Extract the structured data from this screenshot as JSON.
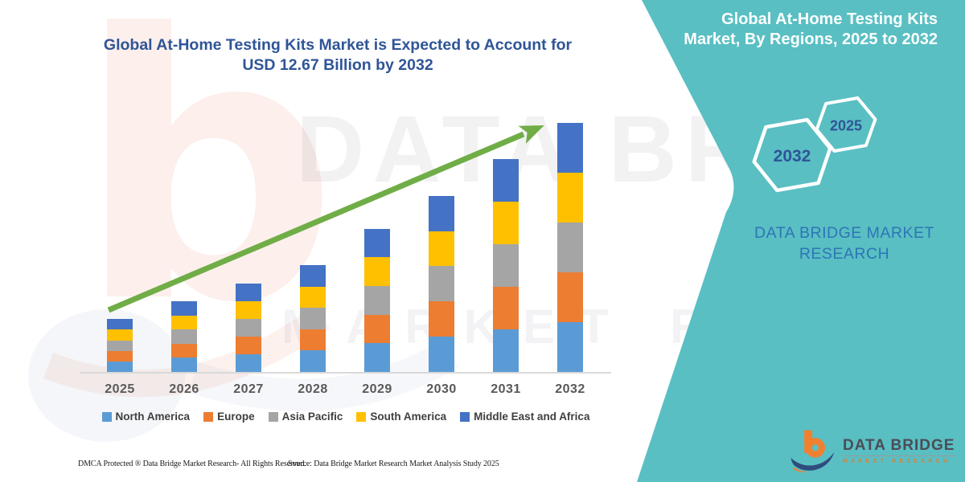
{
  "header": {
    "title_line1": "Global At-Home Testing Kits Market is Expected to Account for",
    "title_line2": "USD 12.67 Billion by 2032"
  },
  "panel": {
    "title_line1": "Global At-Home Testing Kits",
    "title_line2": "Market, By Regions, 2025 to 2032",
    "hexagons": [
      {
        "label": "2032"
      },
      {
        "label": "2025"
      }
    ],
    "brand_line1": "DATA BRIDGE MARKET",
    "brand_line2": "RESEARCH",
    "background_color": "#59BFC3"
  },
  "chart_data": {
    "type": "bar",
    "stacked": true,
    "title": "Global At-Home Testing Kits Market, By Regions, 2025 to 2032",
    "unit": "USD Billion",
    "highlight_value": "USD 12.67 Billion by 2032",
    "categories": [
      "2025",
      "2026",
      "2027",
      "2028",
      "2029",
      "2030",
      "2031",
      "2032"
    ],
    "series": [
      {
        "name": "North America",
        "color": "#5B9BD5",
        "values": [
          0.538,
          0.718,
          0.896,
          1.084,
          1.458,
          1.792,
          2.168,
          2.534
        ]
      },
      {
        "name": "Europe",
        "color": "#ED7D31",
        "values": [
          0.538,
          0.718,
          0.896,
          1.084,
          1.458,
          1.792,
          2.168,
          2.534
        ]
      },
      {
        "name": "Asia Pacific",
        "color": "#A5A5A5",
        "values": [
          0.538,
          0.718,
          0.896,
          1.084,
          1.458,
          1.792,
          2.168,
          2.534
        ]
      },
      {
        "name": "South America",
        "color": "#FFC000",
        "values": [
          0.538,
          0.718,
          0.896,
          1.084,
          1.458,
          1.792,
          2.168,
          2.534
        ]
      },
      {
        "name": "Middle East and Africa",
        "color": "#4472C4",
        "values": [
          0.538,
          0.718,
          0.896,
          1.084,
          1.458,
          1.792,
          2.168,
          2.534
        ]
      }
    ],
    "totals": [
      2.69,
      3.59,
      4.48,
      5.42,
      7.29,
      8.96,
      10.84,
      12.67
    ],
    "ylim": [
      0,
      13
    ],
    "y_axis_labels_visible": false,
    "gridlines": false,
    "legend_position": "bottom",
    "trend_arrow_color": "#70AD47",
    "axis_line_color": "#D9D9D9"
  },
  "watermarks": {
    "letter": "b",
    "text1": "DATA BRIDGE",
    "text2": "MARKET RESEARCH"
  },
  "footer": {
    "dmca": "DMCA Protected ® Data Bridge Market Research-  All Rights Reserved.",
    "source": "Source: Data Bridge Market Research  Market Analysis Study 2025"
  },
  "logo": {
    "name": "DATA BRIDGE",
    "subtitle": "MARKET RESEARCH"
  }
}
